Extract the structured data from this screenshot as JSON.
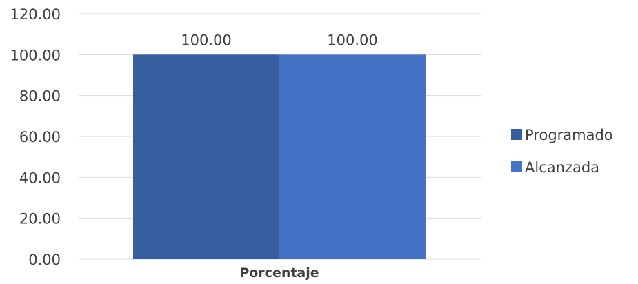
{
  "chart_data": {
    "type": "bar",
    "categories": [
      "Porcentaje"
    ],
    "series": [
      {
        "name": "Programado",
        "values": [
          100.0
        ],
        "color": "#355E9E"
      },
      {
        "name": "Alcanzada",
        "values": [
          100.0
        ],
        "color": "#4472C4"
      }
    ],
    "data_labels": [
      "100.00",
      "100.00"
    ],
    "ylim": [
      0,
      120
    ],
    "yticks": [
      "0.00",
      "20.00",
      "40.00",
      "60.00",
      "80.00",
      "100.00",
      "120.00"
    ],
    "grid": true,
    "legend_position": "right"
  }
}
